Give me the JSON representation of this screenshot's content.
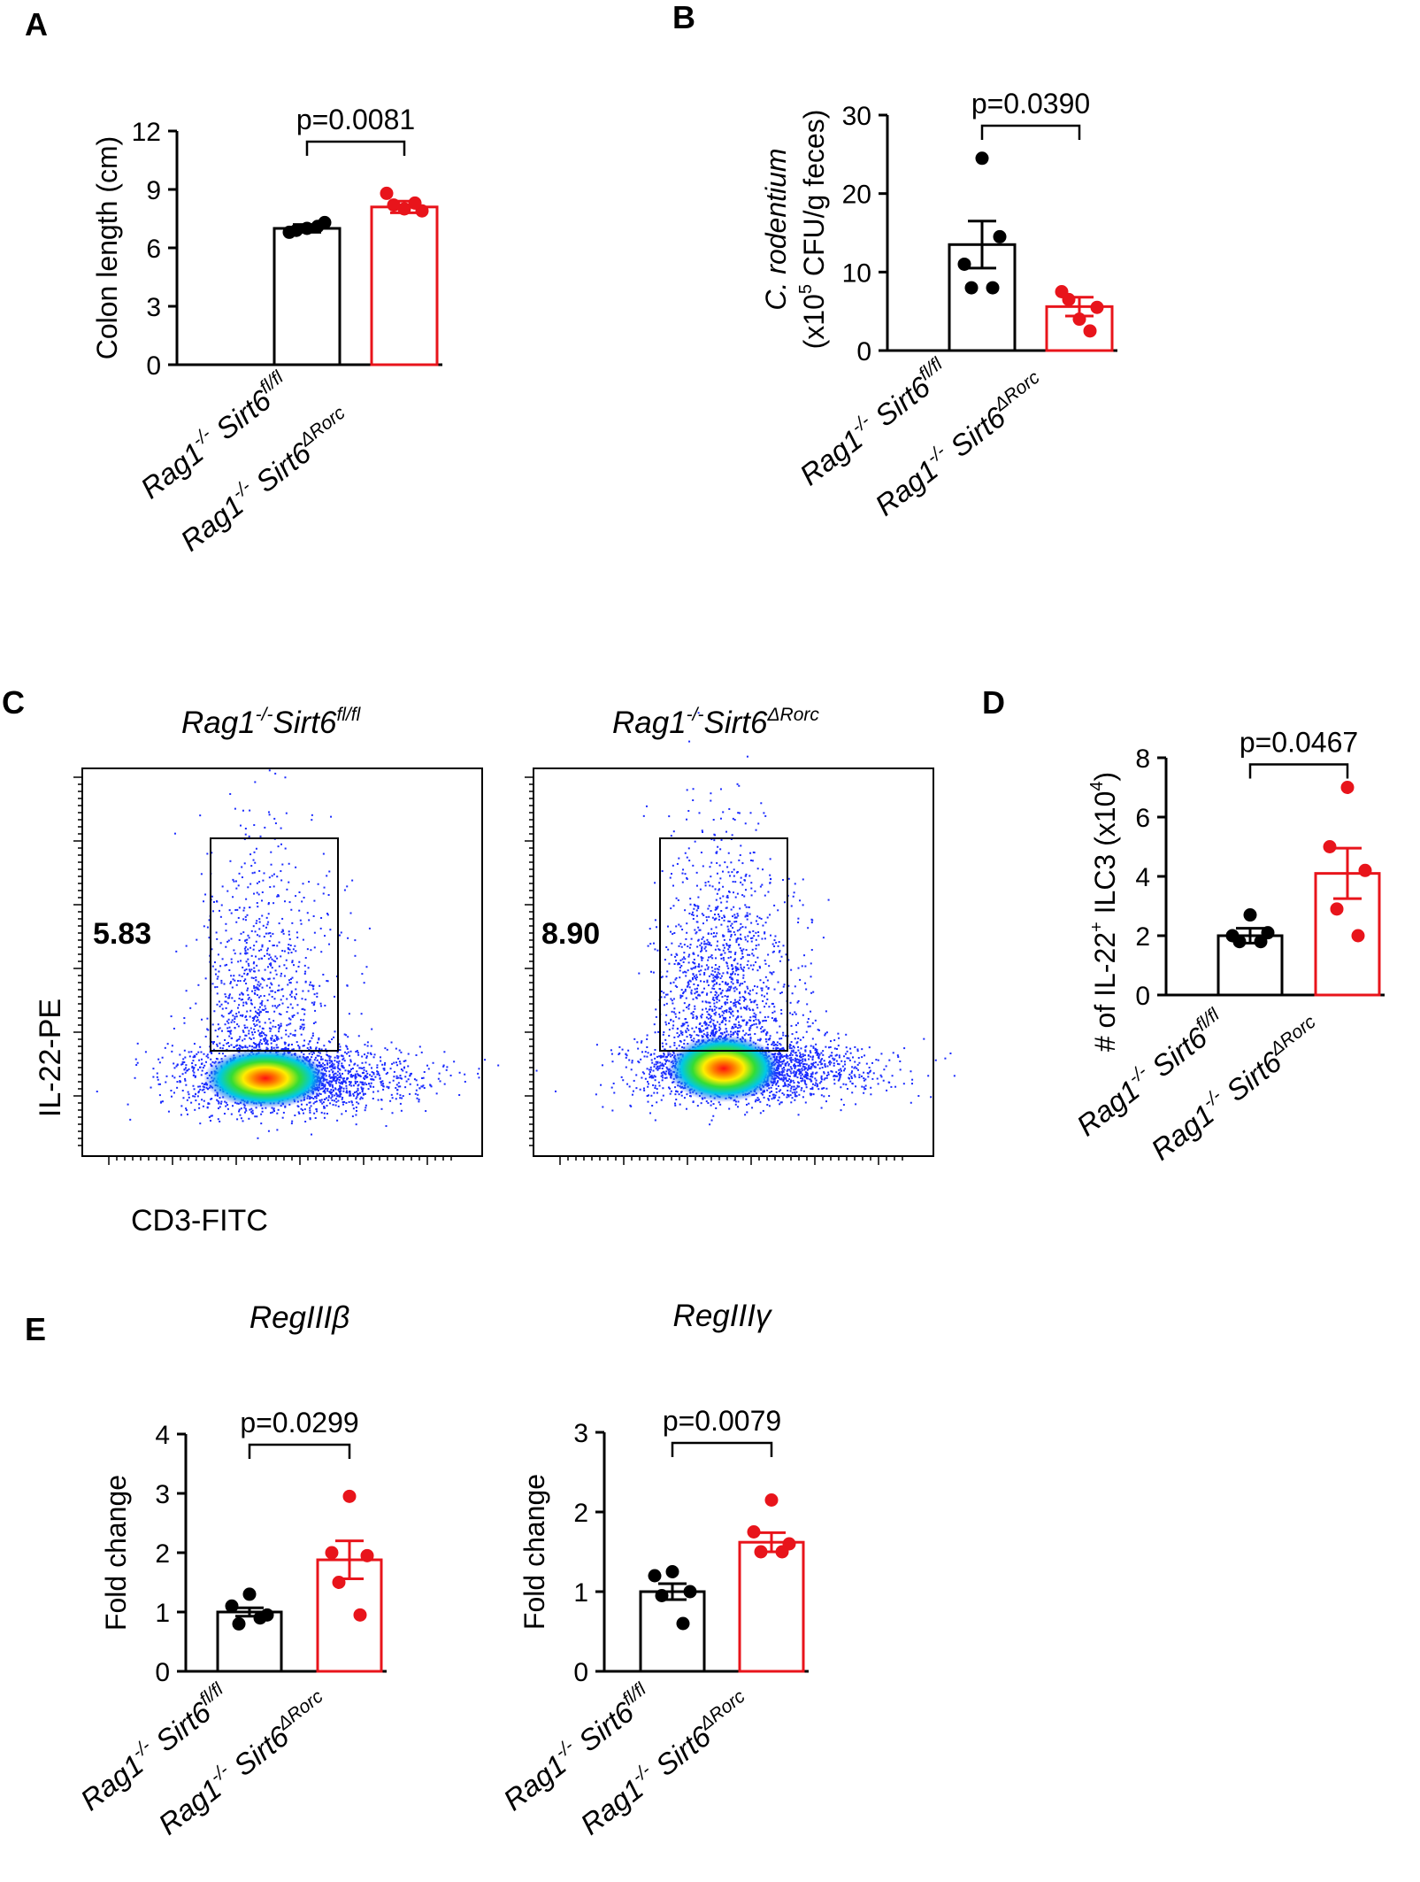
{
  "colors": {
    "control": "#000000",
    "knockout": "#e8141b"
  },
  "categories": {
    "control": {
      "base": "Rag1",
      "sup1": "-/-",
      "gene": " Sirt6",
      "sup2": "fl/fl"
    },
    "knockout": {
      "base": "Rag1",
      "sup1": "-/-",
      "gene": " Sirt6",
      "sup2": "ΔRorc"
    }
  },
  "panel_letters": {
    "a": "A",
    "b": "B",
    "c": "C",
    "d": "D",
    "e": "E"
  },
  "flow": {
    "left_title": {
      "base": "Rag1",
      "sup1": "-/-",
      "gene": "Sirt6",
      "sup2": "fl/fl"
    },
    "right_title": {
      "base": "Rag1",
      "sup1": "-/-",
      "gene": "Sirt6",
      "sup2": "ΔRorc"
    },
    "left_gate_percent": "5.83",
    "right_gate_percent": "8.90",
    "y_axis_label": "IL-22-PE",
    "x_axis_label": "CD3-FITC"
  },
  "chart_data": [
    {
      "id": "A",
      "type": "bar",
      "categories": [
        "Rag1-/- Sirt6fl/fl",
        "Rag1-/- Sirt6ΔRorc"
      ],
      "ylabel": "Colon length (cm)",
      "ylim": [
        0,
        12
      ],
      "yticks": [
        "0",
        "3",
        "6",
        "9",
        "12"
      ],
      "means": [
        7.0,
        8.1
      ],
      "sem": [
        0.2,
        0.3
      ],
      "points": [
        [
          7.0,
          6.8,
          7.3,
          6.9,
          7.1
        ],
        [
          8.0,
          8.8,
          7.9,
          8.2,
          8.3
        ]
      ],
      "pvalue": "p=0.0081"
    },
    {
      "id": "B",
      "type": "bar",
      "categories": [
        "Rag1-/- Sirt6fl/fl",
        "Rag1-/- Sirt6ΔRorc"
      ],
      "ylabel_italic": "C. rodentium",
      "ylabel_line2_a": "(x10",
      "ylabel_line2_sup": "5",
      "ylabel_line2_b": " CFU/g feces)",
      "ylim": [
        0,
        30
      ],
      "yticks": [
        "0",
        "10",
        "20",
        "30"
      ],
      "means": [
        13.5,
        5.6
      ],
      "sem": [
        3.0,
        1.2
      ],
      "points": [
        [
          24.5,
          11.0,
          14.5,
          8.0,
          8.0
        ],
        [
          4.0,
          7.5,
          5.5,
          6.5,
          2.5
        ]
      ],
      "pvalue": "p=0.0390"
    },
    {
      "id": "D",
      "type": "bar",
      "categories": [
        "Rag1-/- Sirt6fl/fl",
        "Rag1-/- Sirt6ΔRorc"
      ],
      "ylabel_a": "# of IL-22",
      "ylabel_sup": "+",
      "ylabel_b": " ILC3 (x10",
      "ylabel_sup2": "4",
      "ylabel_c": ")",
      "ylim": [
        0,
        8
      ],
      "yticks": [
        "0",
        "2",
        "4",
        "6",
        "8"
      ],
      "means": [
        2.0,
        4.1
      ],
      "sem": [
        0.25,
        0.85
      ],
      "points": [
        [
          2.7,
          2.0,
          2.1,
          1.8,
          1.8
        ],
        [
          7.0,
          5.0,
          4.2,
          2.9,
          2.0
        ]
      ],
      "pvalue": "p=0.0467"
    },
    {
      "id": "E1",
      "type": "bar",
      "title": "RegIIIβ",
      "categories": [
        "Rag1-/- Sirt6fl/fl",
        "Rag1-/- Sirt6ΔRorc"
      ],
      "ylabel": "Fold change",
      "ylim": [
        0,
        4
      ],
      "yticks": [
        "0",
        "1",
        "2",
        "3",
        "4"
      ],
      "means": [
        1.0,
        1.88
      ],
      "sem": [
        0.07,
        0.32
      ],
      "points": [
        [
          1.3,
          1.1,
          0.95,
          0.8,
          0.9
        ],
        [
          2.95,
          2.0,
          1.95,
          1.5,
          0.95
        ]
      ],
      "pvalue": "p=0.0299"
    },
    {
      "id": "E2",
      "type": "bar",
      "title": "RegIIIγ",
      "categories": [
        "Rag1-/- Sirt6fl/fl",
        "Rag1-/- Sirt6ΔRorc"
      ],
      "ylabel": "Fold change",
      "ylim": [
        0,
        3
      ],
      "yticks": [
        "0",
        "1",
        "2",
        "3"
      ],
      "means": [
        1.0,
        1.62
      ],
      "sem": [
        0.1,
        0.12
      ],
      "points": [
        [
          1.25,
          1.2,
          1.0,
          0.95,
          0.6
        ],
        [
          2.15,
          1.75,
          1.6,
          1.5,
          1.5
        ]
      ],
      "pvalue": "p=0.0079"
    }
  ]
}
